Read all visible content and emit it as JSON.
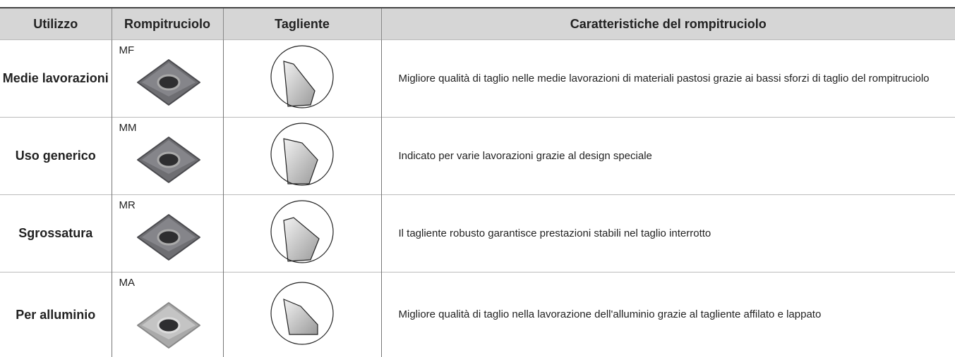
{
  "table": {
    "header": [
      "Utilizzo",
      "Rompitruciolo",
      "Tagliente",
      "Caratteristiche del rompitruciolo"
    ],
    "rows": [
      {
        "usage": "Medie lavorazioni",
        "chipbreaker": "MF",
        "description": "Migliore qualità di taglio nelle medie lavorazioni di materiali pastosi grazie ai bassi sforzi di taglio del rompitruciolo"
      },
      {
        "usage": "Uso generico",
        "chipbreaker": "MM",
        "description": "Indicato per varie lavorazioni grazie al design speciale"
      },
      {
        "usage": "Sgrossatura",
        "chipbreaker": "MR",
        "description": "Il tagliente robusto garantisce prestazioni stabili nel taglio interrotto"
      },
      {
        "usage": "Per alluminio",
        "chipbreaker": "MA",
        "description": "Migliore qualità di taglio nella lavorazione dell'alluminio grazie al tagliente affilato e lappato"
      }
    ]
  }
}
